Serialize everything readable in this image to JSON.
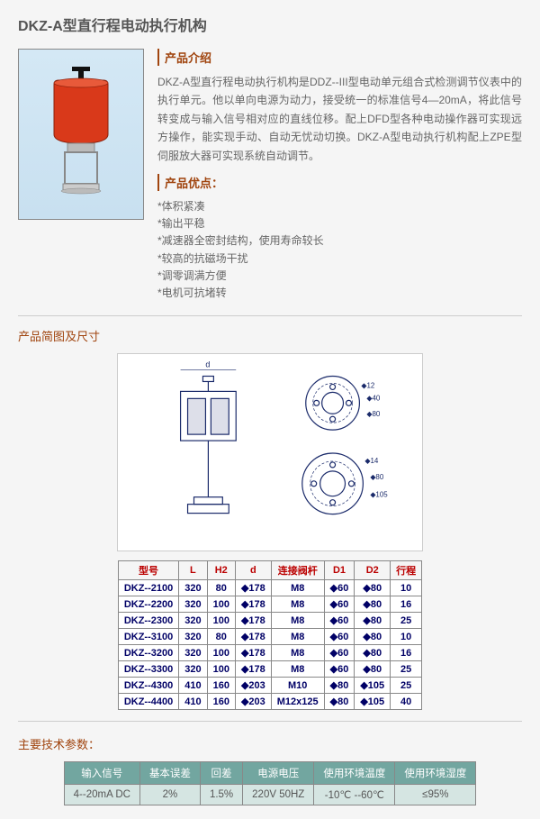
{
  "page_title": "DKZ-A型直行程电动执行机构",
  "intro_heading": "产品介绍",
  "intro_desc": "DKZ-A型直行程电动执行机构是DDZ--III型电动单元组合式检测调节仪表中的执行单元。他以单向电源为动力，接受统一的标准信号4—20mA，将此信号转变成与输入信号相对应的直线位移。配上DFD型各种电动操作器可实现远方操作，能实现手动、自动无忧动切换。DKZ-A型电动执行机构配上ZPE型伺服放大器可实现系统自动调节。",
  "adv_heading": "产品优点：",
  "advantages": [
    "*体积紧凑",
    "*输出平稳",
    "*减速器全密封结构，使用寿命较长",
    "*较高的抗磁场干扰",
    "*调零调满方便",
    "*电机可抗堵转"
  ],
  "dim_heading": "产品简图及尺寸",
  "dim_table_headers": [
    "型号",
    "L",
    "H2",
    "d",
    "连接阀杆",
    "D1",
    "D2",
    "行程"
  ],
  "dim_table_rows": [
    [
      "DKZ--2100",
      "320",
      "80",
      "◆178",
      "M8",
      "◆60",
      "◆80",
      "10"
    ],
    [
      "DKZ--2200",
      "320",
      "100",
      "◆178",
      "M8",
      "◆60",
      "◆80",
      "16"
    ],
    [
      "DKZ--2300",
      "320",
      "100",
      "◆178",
      "M8",
      "◆60",
      "◆80",
      "25"
    ],
    [
      "DKZ--3100",
      "320",
      "80",
      "◆178",
      "M8",
      "◆60",
      "◆80",
      "10"
    ],
    [
      "DKZ--3200",
      "320",
      "100",
      "◆178",
      "M8",
      "◆60",
      "◆80",
      "16"
    ],
    [
      "DKZ--3300",
      "320",
      "100",
      "◆178",
      "M8",
      "◆60",
      "◆80",
      "25"
    ],
    [
      "DKZ--4300",
      "410",
      "160",
      "◆203",
      "M10",
      "◆80",
      "◆105",
      "25"
    ],
    [
      "DKZ--4400",
      "410",
      "160",
      "◆203",
      "M12x125",
      "◆80",
      "◆105",
      "40"
    ]
  ],
  "spec_heading": "主要技术参数：",
  "spec_headers": [
    "输入信号",
    "基本误差",
    "回差",
    "电源电压",
    "使用环境温度",
    "使用环境湿度"
  ],
  "spec_values": [
    "4--20mA DC",
    "2%",
    "1.5%",
    "220V 50HZ",
    "-10℃ --60℃",
    "≤95%"
  ],
  "colors": {
    "heading": "#a0440e",
    "table_header_red": "#b00",
    "table_text_blue": "#006",
    "spec_header_bg": "#72a6a0",
    "spec_cell_bg": "#d5e5e2"
  },
  "diagram_labels": {
    "d": "d",
    "d12": "◆12",
    "d40": "◆40",
    "d80a": "◆80",
    "d14": "◆14",
    "d80b": "◆80",
    "d105": "◆105"
  }
}
